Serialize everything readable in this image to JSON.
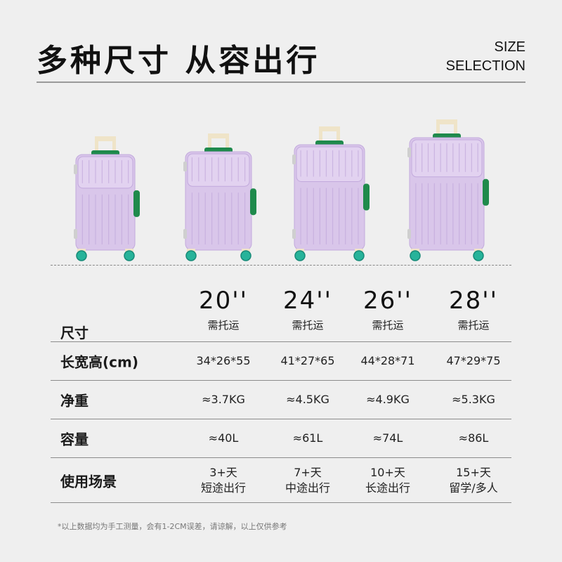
{
  "header": {
    "title": "多种尺寸 从容出行",
    "en_line1": "SIZE",
    "en_line2": "SELECTION"
  },
  "colors": {
    "suitcase": "#d9c6ea",
    "suitcase_dark": "#c2a9dc",
    "accent_green": "#1f8a4c",
    "wheel_teal": "#27b39a",
    "handle_cream": "#efe4c8"
  },
  "sizes": [
    {
      "size": "20''",
      "note": "需托运"
    },
    {
      "size": "24''",
      "note": "需托运"
    },
    {
      "size": "26''",
      "note": "需托运"
    },
    {
      "size": "28''",
      "note": "需托运"
    }
  ],
  "row_labels": {
    "size": "尺寸",
    "dimensions": "长宽高(cm)",
    "weight": "净重",
    "capacity": "容量",
    "usage": "使用场景"
  },
  "dimensions": [
    "34*26*55",
    "41*27*65",
    "44*28*71",
    "47*29*75"
  ],
  "weight": [
    "≈3.7KG",
    "≈4.5KG",
    "≈4.9KG",
    "≈5.3KG"
  ],
  "capacity": [
    "≈40L",
    "≈61L",
    "≈74L",
    "≈86L"
  ],
  "usage": [
    {
      "days": "3+天",
      "desc": "短途出行"
    },
    {
      "days": "7+天",
      "desc": "中途出行"
    },
    {
      "days": "10+天",
      "desc": "长途出行"
    },
    {
      "days": "15+天",
      "desc": "留学/多人"
    }
  ],
  "footnote": "*以上数据均为手工测量，会有1-2CM误差，请谅解，以上仅供参考"
}
